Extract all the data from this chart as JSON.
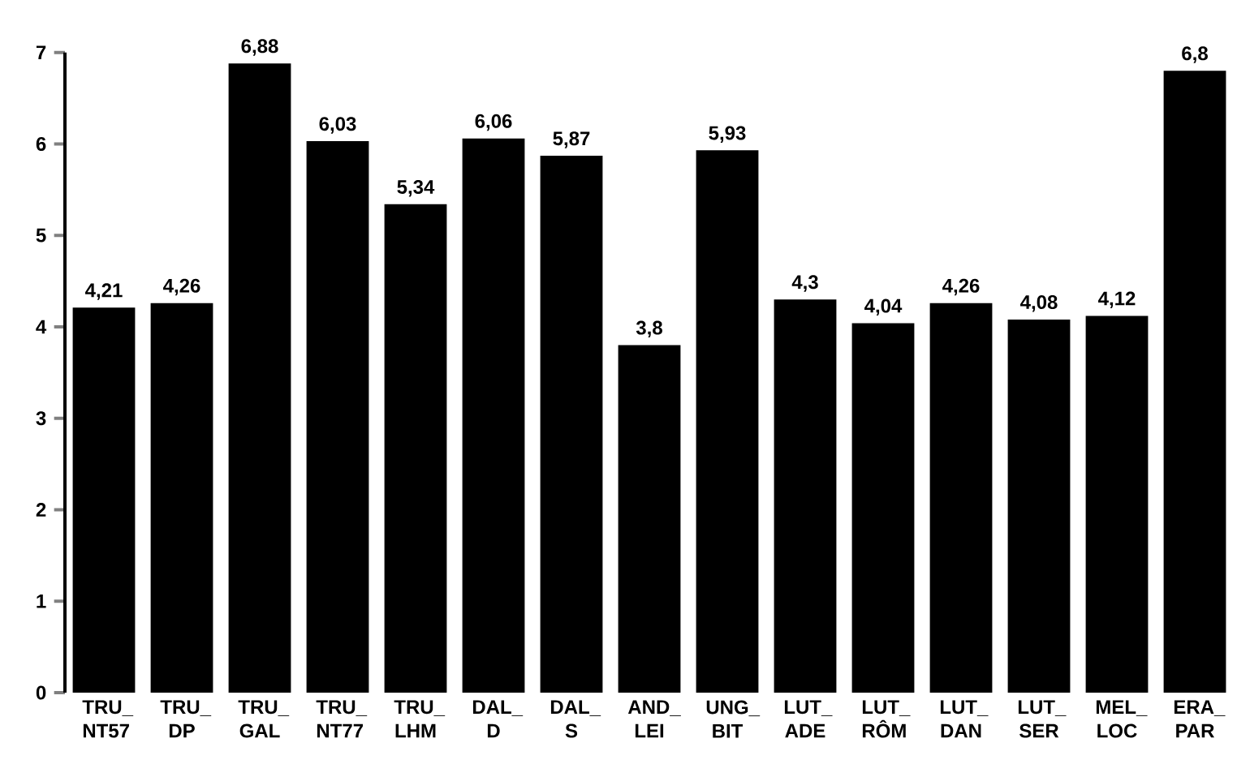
{
  "chart_data": {
    "type": "bar",
    "categories": [
      "TRU_ NT57",
      "TRU_ DP",
      "TRU_ GAL",
      "TRU_ NT77",
      "TRU_ LHM",
      "DAL_ D",
      "DAL_ S",
      "AND_ LEI",
      "UNG_ BIT",
      "LUT_ ADE",
      "LUT_ RÔM",
      "LUT_ DAN",
      "LUT_ SER",
      "MEL_ LOC",
      "ERA_ PAR"
    ],
    "values": [
      4.21,
      4.26,
      6.88,
      6.03,
      5.34,
      6.06,
      5.87,
      3.8,
      5.93,
      4.3,
      4.04,
      4.26,
      4.08,
      4.12,
      6.8
    ],
    "value_labels": [
      "4,21",
      "4,26",
      "6,88",
      "6,03",
      "5,34",
      "6,06",
      "5,87",
      "3,8",
      "5,93",
      "4,3",
      "4,04",
      "4,26",
      "4,08",
      "4,12",
      "6,8"
    ],
    "color": "#000000",
    "ylim": [
      0,
      7
    ],
    "yticks": [
      0,
      1,
      2,
      3,
      4,
      5,
      6,
      7
    ]
  }
}
